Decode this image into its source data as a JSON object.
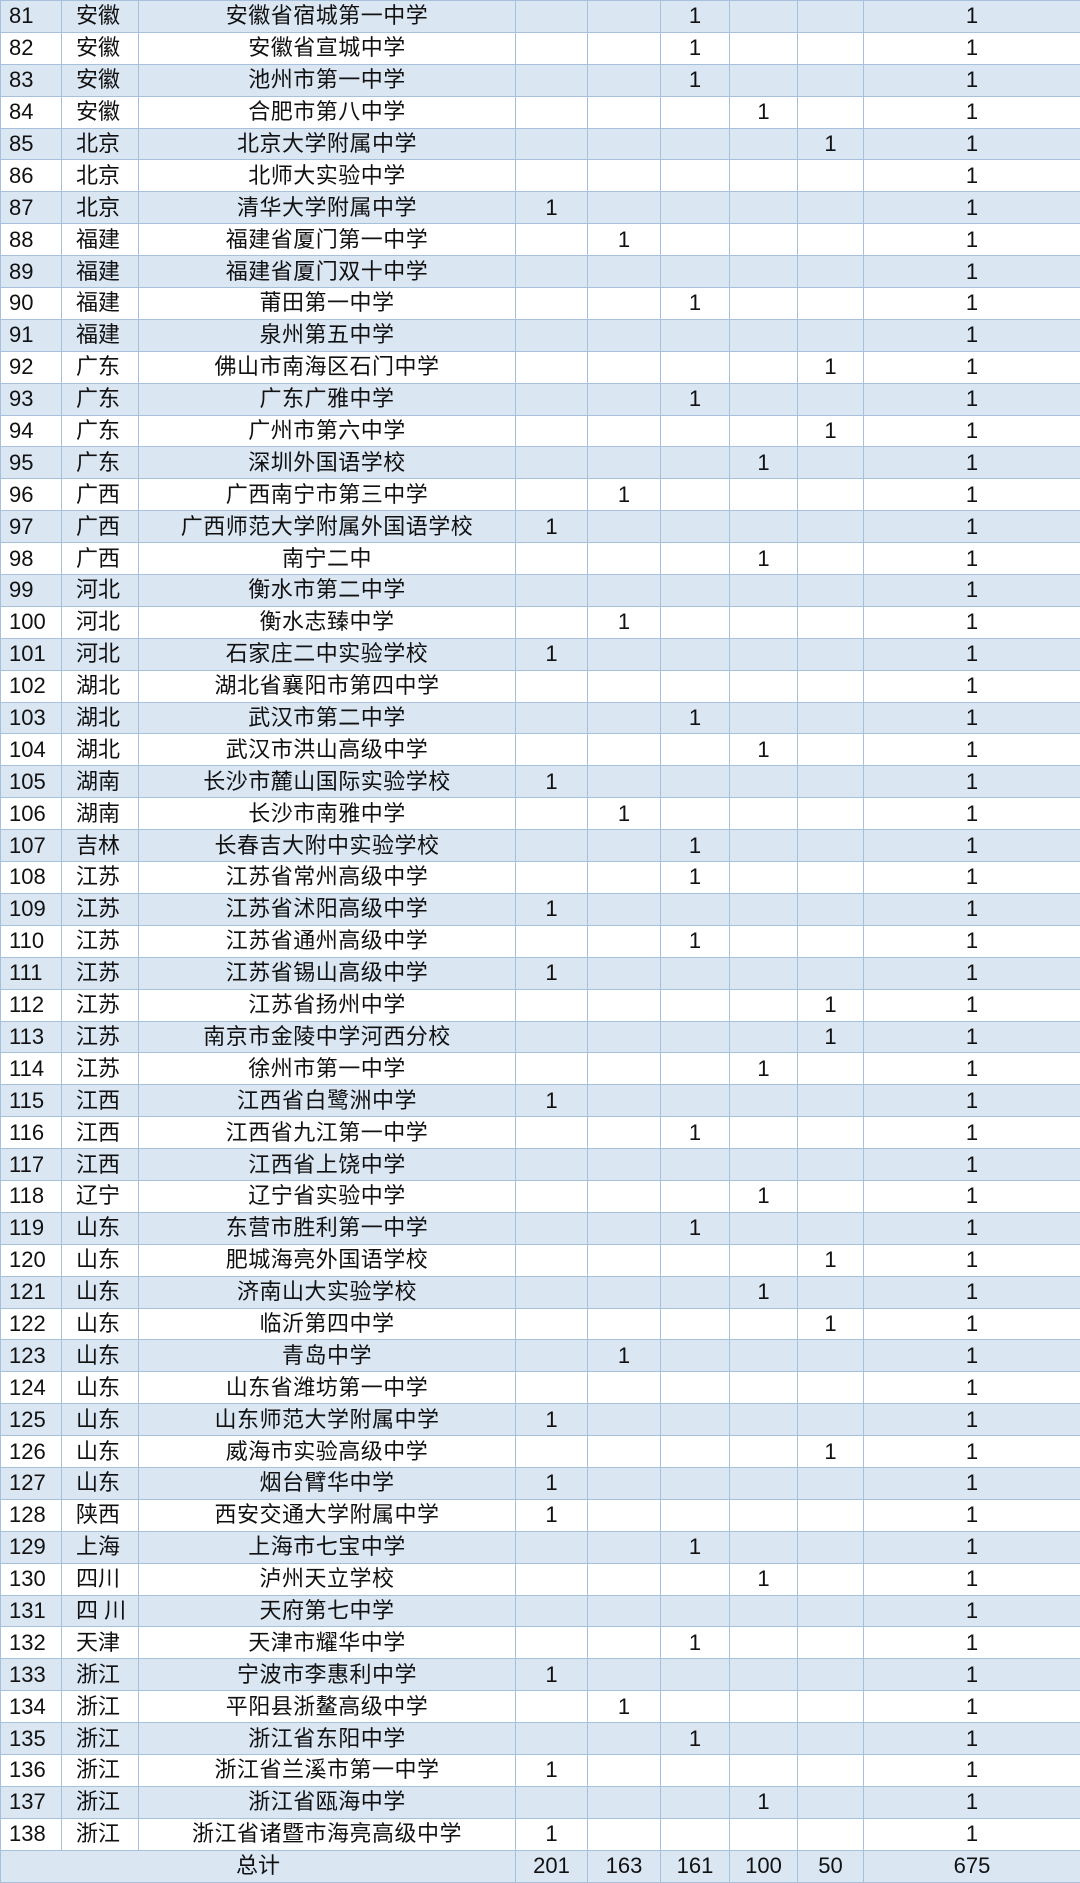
{
  "table": {
    "rows": [
      [
        "81",
        "安徽",
        "安徽省宿城第一中学",
        "",
        "",
        "1",
        "",
        "",
        "1"
      ],
      [
        "82",
        "安徽",
        "安徽省宣城中学",
        "",
        "",
        "1",
        "",
        "",
        "1"
      ],
      [
        "83",
        "安徽",
        "池州市第一中学",
        "",
        "",
        "1",
        "",
        "",
        "1"
      ],
      [
        "84",
        "安徽",
        "合肥市第八中学",
        "",
        "",
        "",
        "1",
        "",
        "1"
      ],
      [
        "85",
        "北京",
        "北京大学附属中学",
        "",
        "",
        "",
        "",
        "1",
        "1"
      ],
      [
        "86",
        "北京",
        "北师大实验中学",
        "",
        "",
        "",
        "",
        "",
        "1"
      ],
      [
        "87",
        "北京",
        "清华大学附属中学",
        "1",
        "",
        "",
        "",
        "",
        "1"
      ],
      [
        "88",
        "福建",
        "福建省厦门第一中学",
        "",
        "1",
        "",
        "",
        "",
        "1"
      ],
      [
        "89",
        "福建",
        "福建省厦门双十中学",
        "",
        "",
        "",
        "",
        "",
        "1"
      ],
      [
        "90",
        "福建",
        "莆田第一中学",
        "",
        "",
        "1",
        "",
        "",
        "1"
      ],
      [
        "91",
        "福建",
        "泉州第五中学",
        "",
        "",
        "",
        "",
        "",
        "1"
      ],
      [
        "92",
        "广东",
        "佛山市南海区石门中学",
        "",
        "",
        "",
        "",
        "1",
        "1"
      ],
      [
        "93",
        "广东",
        "广东广雅中学",
        "",
        "",
        "1",
        "",
        "",
        "1"
      ],
      [
        "94",
        "广东",
        "广州市第六中学",
        "",
        "",
        "",
        "",
        "1",
        "1"
      ],
      [
        "95",
        "广东",
        "深圳外国语学校",
        "",
        "",
        "",
        "1",
        "",
        "1"
      ],
      [
        "96",
        "广西",
        "广西南宁市第三中学",
        "",
        "1",
        "",
        "",
        "",
        "1"
      ],
      [
        "97",
        "广西",
        "广西师范大学附属外国语学校",
        "1",
        "",
        "",
        "",
        "",
        "1"
      ],
      [
        "98",
        "广西",
        "南宁二中",
        "",
        "",
        "",
        "1",
        "",
        "1"
      ],
      [
        "99",
        "河北",
        "衡水市第二中学",
        "",
        "",
        "",
        "",
        "",
        "1"
      ],
      [
        "100",
        "河北",
        "衡水志臻中学",
        "",
        "1",
        "",
        "",
        "",
        "1"
      ],
      [
        "101",
        "河北",
        "石家庄二中实验学校",
        "1",
        "",
        "",
        "",
        "",
        "1"
      ],
      [
        "102",
        "湖北",
        "湖北省襄阳市第四中学",
        "",
        "",
        "",
        "",
        "",
        "1"
      ],
      [
        "103",
        "湖北",
        "武汉市第二中学",
        "",
        "",
        "1",
        "",
        "",
        "1"
      ],
      [
        "104",
        "湖北",
        "武汉市洪山高级中学",
        "",
        "",
        "",
        "1",
        "",
        "1"
      ],
      [
        "105",
        "湖南",
        "长沙市麓山国际实验学校",
        "1",
        "",
        "",
        "",
        "",
        "1"
      ],
      [
        "106",
        "湖南",
        "长沙市南雅中学",
        "",
        "1",
        "",
        "",
        "",
        "1"
      ],
      [
        "107",
        "吉林",
        "长春吉大附中实验学校",
        "",
        "",
        "1",
        "",
        "",
        "1"
      ],
      [
        "108",
        "江苏",
        "江苏省常州高级中学",
        "",
        "",
        "1",
        "",
        "",
        "1"
      ],
      [
        "109",
        "江苏",
        "江苏省沭阳高级中学",
        "1",
        "",
        "",
        "",
        "",
        "1"
      ],
      [
        "110",
        "江苏",
        "江苏省通州高级中学",
        "",
        "",
        "1",
        "",
        "",
        "1"
      ],
      [
        "111",
        "江苏",
        "江苏省锡山高级中学",
        "1",
        "",
        "",
        "",
        "",
        "1"
      ],
      [
        "112",
        "江苏",
        "江苏省扬州中学",
        "",
        "",
        "",
        "",
        "1",
        "1"
      ],
      [
        "113",
        "江苏",
        "南京市金陵中学河西分校",
        "",
        "",
        "",
        "",
        "1",
        "1"
      ],
      [
        "114",
        "江苏",
        "徐州市第一中学",
        "",
        "",
        "",
        "1",
        "",
        "1"
      ],
      [
        "115",
        "江西",
        "江西省白鹭洲中学",
        "1",
        "",
        "",
        "",
        "",
        "1"
      ],
      [
        "116",
        "江西",
        "江西省九江第一中学",
        "",
        "",
        "1",
        "",
        "",
        "1"
      ],
      [
        "117",
        "江西",
        "江西省上饶中学",
        "",
        "",
        "",
        "",
        "",
        "1"
      ],
      [
        "118",
        "辽宁",
        "辽宁省实验中学",
        "",
        "",
        "",
        "1",
        "",
        "1"
      ],
      [
        "119",
        "山东",
        "东营市胜利第一中学",
        "",
        "",
        "1",
        "",
        "",
        "1"
      ],
      [
        "120",
        "山东",
        "肥城海亮外国语学校",
        "",
        "",
        "",
        "",
        "1",
        "1"
      ],
      [
        "121",
        "山东",
        "济南山大实验学校",
        "",
        "",
        "",
        "1",
        "",
        "1"
      ],
      [
        "122",
        "山东",
        "临沂第四中学",
        "",
        "",
        "",
        "",
        "1",
        "1"
      ],
      [
        "123",
        "山东",
        "青岛中学",
        "",
        "1",
        "",
        "",
        "",
        "1"
      ],
      [
        "124",
        "山东",
        "山东省潍坊第一中学",
        "",
        "",
        "",
        "",
        "",
        "1"
      ],
      [
        "125",
        "山东",
        "山东师范大学附属中学",
        "1",
        "",
        "",
        "",
        "",
        "1"
      ],
      [
        "126",
        "山东",
        "威海市实验高级中学",
        "",
        "",
        "",
        "",
        "1",
        "1"
      ],
      [
        "127",
        "山东",
        "烟台臂华中学",
        "1",
        "",
        "",
        "",
        "",
        "1"
      ],
      [
        "128",
        "陕西",
        "西安交通大学附属中学",
        "1",
        "",
        "",
        "",
        "",
        "1"
      ],
      [
        "129",
        "上海",
        "上海市七宝中学",
        "",
        "",
        "1",
        "",
        "",
        "1"
      ],
      [
        "130",
        "四川",
        "泸州天立学校",
        "",
        "",
        "",
        "1",
        "",
        "1"
      ],
      [
        "131",
        "四 川",
        "天府第七中学",
        "",
        "",
        "",
        "",
        "",
        "1"
      ],
      [
        "132",
        "天津",
        "天津市耀华中学",
        "",
        "",
        "1",
        "",
        "",
        "1"
      ],
      [
        "133",
        "浙江",
        "宁波市李惠利中学",
        "1",
        "",
        "",
        "",
        "",
        "1"
      ],
      [
        "134",
        "浙江",
        "平阳县浙鳌高级中学",
        "",
        "1",
        "",
        "",
        "",
        "1"
      ],
      [
        "135",
        "浙江",
        "浙江省东阳中学",
        "",
        "",
        "1",
        "",
        "",
        "1"
      ],
      [
        "136",
        "浙江",
        "浙江省兰溪市第一中学",
        "1",
        "",
        "",
        "",
        "",
        "1"
      ],
      [
        "137",
        "浙江",
        "浙江省瓯海中学",
        "",
        "",
        "",
        "1",
        "",
        "1"
      ],
      [
        "138",
        "浙江",
        "浙江省诸暨市海亮高级中学",
        "1",
        "",
        "",
        "",
        "",
        "1"
      ]
    ],
    "total": {
      "label": "总计",
      "values": [
        "201",
        "163",
        "161",
        "100",
        "50",
        "675"
      ]
    }
  },
  "colors": {
    "row_alt": "#dbe6f3",
    "border": "#a7c1dd"
  }
}
